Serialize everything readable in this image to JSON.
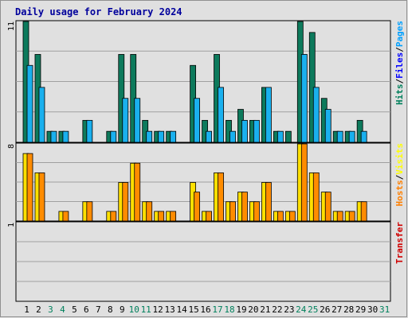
{
  "chart_data": [
    {
      "type": "bar",
      "title": "Daily usage for February 2024",
      "categories": [
        "1",
        "2",
        "3",
        "4",
        "5",
        "6",
        "7",
        "8",
        "9",
        "10",
        "11",
        "12",
        "13",
        "14",
        "15",
        "16",
        "17",
        "18",
        "19",
        "20",
        "21",
        "22",
        "23",
        "24",
        "25",
        "26",
        "27",
        "28",
        "29",
        "30",
        "31"
      ],
      "weekend_days": [
        "3",
        "4",
        "10",
        "11",
        "17",
        "18",
        "24",
        "25",
        "31"
      ],
      "ymax_label": "11",
      "ylim": [
        0,
        11
      ],
      "legend": [
        {
          "text": "Hits",
          "color": "#00805c"
        },
        {
          "text": "/",
          "color": "#000000"
        },
        {
          "text": "Files",
          "color": "#0000ff"
        },
        {
          "text": "/",
          "color": "#000000"
        },
        {
          "text": "Pages",
          "color": "#00a0ff"
        }
      ],
      "series": [
        {
          "name": "Hits",
          "color": "#0d7a5c",
          "values": [
            11,
            8,
            1,
            1,
            0,
            2,
            0,
            1,
            8,
            8,
            2,
            1,
            1,
            0,
            7,
            2,
            8,
            2,
            3,
            2,
            5,
            1,
            1,
            11,
            10,
            4,
            1,
            1,
            2,
            0,
            0
          ]
        },
        {
          "name": "Files",
          "color": "#1ab0ee",
          "values": [
            7,
            5,
            1,
            1,
            0,
            2,
            0,
            1,
            4,
            4,
            1,
            1,
            1,
            0,
            4,
            1,
            5,
            1,
            2,
            2,
            5,
            1,
            0,
            8,
            5,
            3,
            1,
            1,
            1,
            0,
            0
          ]
        }
      ]
    },
    {
      "type": "bar",
      "ymax_label": "8",
      "ylim": [
        0,
        8
      ],
      "legend": [
        {
          "text": "Hosts",
          "color": "#ff8000"
        },
        {
          "text": "/",
          "color": "#000000"
        },
        {
          "text": "Visits",
          "color": "#ffff00"
        }
      ],
      "series": [
        {
          "name": "Visits",
          "color": "#ffe000",
          "values": [
            7,
            5,
            0,
            1,
            0,
            2,
            0,
            1,
            4,
            6,
            2,
            1,
            1,
            0,
            4,
            1,
            5,
            2,
            3,
            2,
            4,
            1,
            1,
            8,
            5,
            3,
            1,
            1,
            2,
            0,
            0
          ]
        },
        {
          "name": "Hosts",
          "color": "#ff8c00",
          "values": [
            7,
            5,
            0,
            1,
            0,
            2,
            0,
            1,
            4,
            6,
            2,
            1,
            1,
            0,
            3,
            1,
            5,
            2,
            3,
            2,
            4,
            1,
            1,
            8,
            5,
            3,
            1,
            1,
            2,
            0,
            0
          ]
        }
      ]
    },
    {
      "type": "bar",
      "ymax_label": "1",
      "ylim": [
        0,
        1
      ],
      "legend": [
        {
          "text": "Transfer",
          "color": "#d00000"
        }
      ],
      "series": [
        {
          "name": "Transfer",
          "color": "#d00000",
          "values": [
            0,
            0,
            0,
            0,
            0,
            0,
            0,
            0,
            0,
            0,
            0,
            0,
            0,
            0,
            0,
            0,
            0,
            0,
            0,
            0,
            0,
            0,
            0,
            0,
            0,
            0,
            0,
            0,
            0,
            0,
            0
          ]
        }
      ]
    }
  ]
}
